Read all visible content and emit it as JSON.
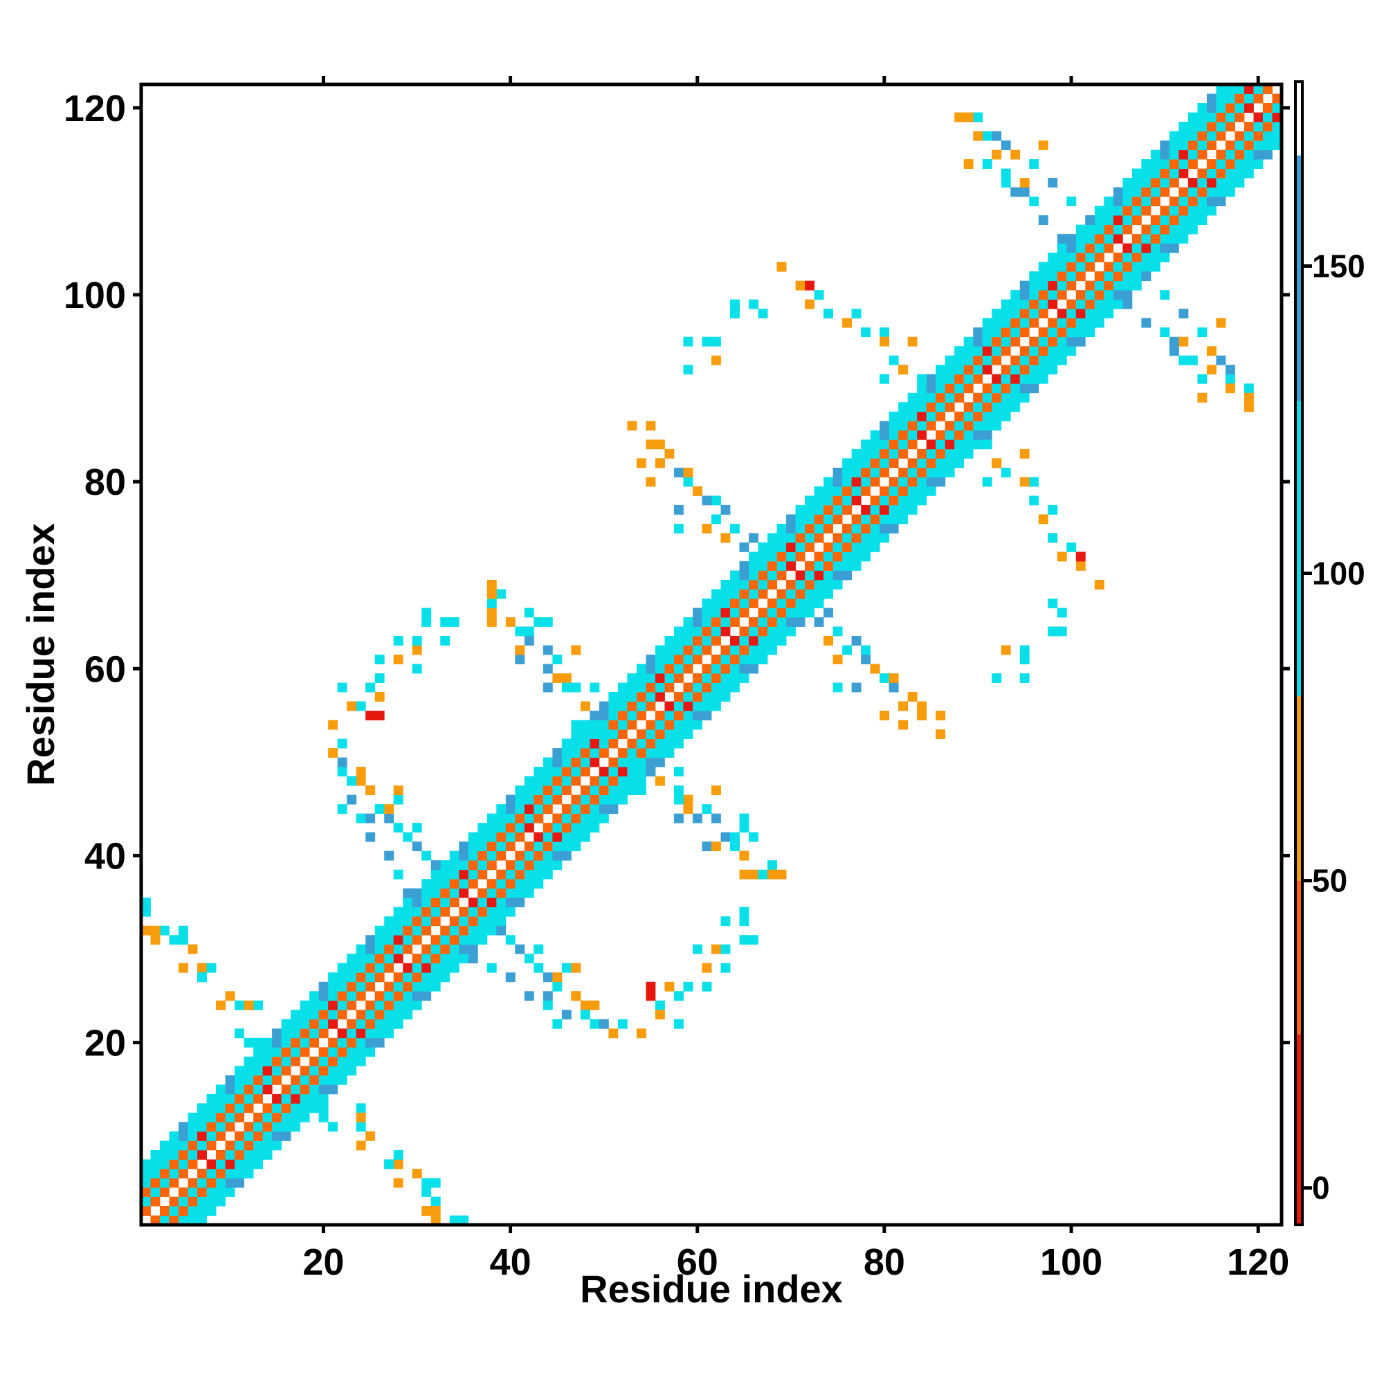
{
  "chart_data": {
    "type": "heatmap",
    "title": "",
    "xlabel": "Residue index",
    "ylabel": "Residue index",
    "xlim": [
      1,
      122
    ],
    "ylim": [
      1,
      122
    ],
    "xticks": [
      20,
      40,
      60,
      80,
      100,
      120
    ],
    "yticks": [
      20,
      40,
      60,
      80,
      100,
      120
    ],
    "grid": false,
    "colorbar": {
      "range": [
        -6,
        180
      ],
      "ticks": [
        0,
        50,
        100,
        150
      ],
      "bands": [
        {
          "from": -6,
          "to": 25,
          "color": "#e8180e"
        },
        {
          "from": 25,
          "to": 50,
          "color": "#fc6405"
        },
        {
          "from": 50,
          "to": 80,
          "color": "#f99c0c"
        },
        {
          "from": 80,
          "to": 128,
          "color": "#08e0e9"
        },
        {
          "from": 128,
          "to": 168,
          "color": "#3b9fd4"
        },
        {
          "from": 168,
          "to": 180,
          "color": "#ffffff"
        }
      ]
    },
    "colors": {
      "red": "#e8180e",
      "orange": "#fc6405",
      "amber": "#f99c0c",
      "cyan": "#08e0e9",
      "steel": "#3b9fd4",
      "slate": "#5a86c4"
    },
    "diagonal_band": {
      "description_pattern": "cells at offsets from diagonal",
      "offsets": [
        {
          "d": 0,
          "color": "white"
        },
        {
          "d": 1,
          "color": "orange"
        },
        {
          "d": 2,
          "color": "cyan"
        },
        {
          "d": 3,
          "color": "orange"
        },
        {
          "d": 4,
          "color": "cyan"
        },
        {
          "d": 5,
          "color": "cyan"
        },
        {
          "d": 6,
          "color": "cyan"
        }
      ]
    },
    "contacts": [
      [
        6,
        30,
        "amber"
      ],
      [
        7,
        28,
        "amber"
      ],
      [
        8,
        28,
        "cyan"
      ],
      [
        7,
        27,
        "steel"
      ],
      [
        10,
        25,
        "amber"
      ],
      [
        11,
        24,
        "cyan"
      ],
      [
        13,
        24,
        "cyan"
      ],
      [
        13,
        20,
        "cyan"
      ],
      [
        1,
        32,
        "amber"
      ],
      [
        1,
        34,
        "cyan"
      ],
      [
        2,
        31,
        "amber"
      ],
      [
        5,
        31,
        "cyan"
      ],
      [
        5,
        32,
        "cyan"
      ],
      [
        20,
        12,
        "cyan"
      ],
      [
        21,
        11,
        "cyan"
      ],
      [
        24,
        12,
        "amber"
      ],
      [
        24,
        9,
        "amber"
      ],
      [
        27,
        7,
        "cyan"
      ],
      [
        28,
        5,
        "amber"
      ],
      [
        31,
        4,
        "cyan"
      ],
      [
        32,
        3,
        "cyan"
      ],
      [
        32,
        2,
        "amber"
      ],
      [
        35,
        1,
        "cyan"
      ],
      [
        21,
        51,
        "amber"
      ],
      [
        22,
        49,
        "cyan"
      ],
      [
        23,
        48,
        "cyan"
      ],
      [
        24,
        48,
        "amber"
      ],
      [
        25,
        47,
        "amber"
      ],
      [
        26,
        45,
        "cyan"
      ],
      [
        27,
        44,
        "steel"
      ],
      [
        28,
        43,
        "cyan"
      ],
      [
        29,
        42,
        "cyan"
      ],
      [
        30,
        41,
        "steel"
      ],
      [
        31,
        40,
        "cyan"
      ],
      [
        32,
        39,
        "steel"
      ],
      [
        21,
        54,
        "amber"
      ],
      [
        24,
        56,
        "cyan"
      ],
      [
        25,
        58,
        "cyan"
      ],
      [
        26,
        57,
        "amber"
      ],
      [
        28,
        63,
        "cyan"
      ],
      [
        30,
        62,
        "amber"
      ],
      [
        31,
        66,
        "cyan"
      ],
      [
        34,
        65,
        "cyan"
      ],
      [
        26,
        55,
        "red"
      ],
      [
        22,
        45,
        "cyan"
      ],
      [
        25,
        44,
        "steel"
      ],
      [
        28,
        46,
        "cyan"
      ],
      [
        38,
        69,
        "amber"
      ],
      [
        39,
        68,
        "cyan"
      ],
      [
        42,
        66,
        "cyan"
      ],
      [
        44,
        65,
        "cyan"
      ],
      [
        42,
        63,
        "steel"
      ],
      [
        44,
        62,
        "steel"
      ],
      [
        45,
        61,
        "cyan"
      ],
      [
        46,
        59,
        "amber"
      ],
      [
        47,
        58,
        "cyan"
      ],
      [
        48,
        56,
        "cyan"
      ],
      [
        49,
        55,
        "steel"
      ],
      [
        50,
        53,
        "cyan"
      ],
      [
        38,
        66,
        "amber"
      ],
      [
        40,
        65,
        "amber"
      ],
      [
        42,
        64,
        "cyan"
      ],
      [
        47,
        62,
        "amber"
      ],
      [
        49,
        58,
        "cyan"
      ],
      [
        36,
        29,
        "steel"
      ],
      [
        38,
        28,
        "cyan"
      ],
      [
        40,
        27,
        "steel"
      ],
      [
        42,
        25,
        "steel"
      ],
      [
        44,
        24,
        "cyan"
      ],
      [
        46,
        23,
        "steel"
      ],
      [
        48,
        23,
        "cyan"
      ],
      [
        50,
        22,
        "steel"
      ],
      [
        52,
        22,
        "cyan"
      ],
      [
        45,
        27,
        "amber"
      ],
      [
        47,
        25,
        "amber"
      ],
      [
        49,
        24,
        "amber"
      ],
      [
        43,
        30,
        "cyan"
      ],
      [
        47,
        28,
        "amber"
      ],
      [
        55,
        25,
        "red"
      ],
      [
        56,
        23,
        "amber"
      ],
      [
        58,
        25,
        "cyan"
      ],
      [
        59,
        26,
        "cyan"
      ],
      [
        61,
        26,
        "cyan"
      ],
      [
        58,
        22,
        "cyan"
      ],
      [
        60,
        30,
        "cyan"
      ],
      [
        61,
        28,
        "amber"
      ],
      [
        63,
        30,
        "cyan"
      ],
      [
        65,
        31,
        "cyan"
      ],
      [
        63,
        33,
        "cyan"
      ],
      [
        65,
        33,
        "cyan"
      ],
      [
        52,
        46,
        "cyan"
      ],
      [
        54,
        47,
        "cyan"
      ],
      [
        56,
        48,
        "amber"
      ],
      [
        58,
        46,
        "cyan"
      ],
      [
        58,
        44,
        "steel"
      ],
      [
        59,
        45,
        "amber"
      ],
      [
        60,
        44,
        "steel"
      ],
      [
        61,
        41,
        "steel"
      ],
      [
        62,
        41,
        "amber"
      ],
      [
        64,
        41,
        "cyan"
      ],
      [
        65,
        38,
        "amber"
      ],
      [
        67,
        38,
        "cyan"
      ],
      [
        68,
        38,
        "amber"
      ],
      [
        65,
        43,
        "cyan"
      ],
      [
        53,
        86,
        "amber"
      ],
      [
        55,
        84,
        "amber"
      ],
      [
        56,
        82,
        "cyan"
      ],
      [
        58,
        81,
        "steel"
      ],
      [
        59,
        80,
        "cyan"
      ],
      [
        60,
        79,
        "steel"
      ],
      [
        62,
        78,
        "cyan"
      ],
      [
        63,
        77,
        "steel"
      ],
      [
        64,
        75,
        "cyan"
      ],
      [
        66,
        74,
        "steel"
      ],
      [
        67,
        73,
        "cyan"
      ],
      [
        54,
        82,
        "amber"
      ],
      [
        58,
        77,
        "steel"
      ],
      [
        61,
        75,
        "amber"
      ],
      [
        59,
        95,
        "cyan"
      ],
      [
        61,
        95,
        "cyan"
      ],
      [
        62,
        93,
        "amber"
      ],
      [
        64,
        99,
        "cyan"
      ],
      [
        66,
        99,
        "cyan"
      ],
      [
        69,
        103,
        "amber"
      ],
      [
        71,
        101,
        "amber"
      ],
      [
        73,
        100,
        "cyan"
      ],
      [
        74,
        98,
        "amber"
      ],
      [
        76,
        97,
        "amber"
      ],
      [
        80,
        96,
        "cyan"
      ],
      [
        82,
        92,
        "amber"
      ],
      [
        80,
        91,
        "cyan"
      ],
      [
        70,
        66,
        "cyan"
      ],
      [
        73,
        65,
        "steel"
      ],
      [
        74,
        63,
        "amber"
      ],
      [
        76,
        62,
        "cyan"
      ],
      [
        78,
        61,
        "steel"
      ],
      [
        79,
        60,
        "amber"
      ],
      [
        81,
        59,
        "amber"
      ],
      [
        83,
        57,
        "amber"
      ],
      [
        84,
        56,
        "amber"
      ],
      [
        86,
        55,
        "amber"
      ],
      [
        75,
        58,
        "cyan"
      ],
      [
        80,
        55,
        "amber"
      ],
      [
        82,
        56,
        "amber"
      ],
      [
        89,
        84,
        "cyan"
      ],
      [
        91,
        84,
        "cyan"
      ],
      [
        92,
        82,
        "amber"
      ],
      [
        93,
        81,
        "cyan"
      ],
      [
        95,
        80,
        "amber"
      ],
      [
        96,
        78,
        "cyan"
      ],
      [
        98,
        77,
        "cyan"
      ],
      [
        99,
        72,
        "amber"
      ],
      [
        101,
        72,
        "red"
      ],
      [
        98,
        74,
        "cyan"
      ],
      [
        95,
        83,
        "amber"
      ],
      [
        98,
        67,
        "cyan"
      ],
      [
        98,
        64,
        "cyan"
      ],
      [
        95,
        62,
        "cyan"
      ],
      [
        92,
        59,
        "cyan"
      ],
      [
        88,
        119,
        "amber"
      ],
      [
        90,
        119,
        "cyan"
      ],
      [
        91,
        117,
        "cyan"
      ],
      [
        93,
        116,
        "steel"
      ],
      [
        94,
        115,
        "amber"
      ],
      [
        96,
        114,
        "cyan"
      ],
      [
        98,
        112,
        "steel"
      ],
      [
        100,
        110,
        "cyan"
      ],
      [
        102,
        108,
        "steel"
      ],
      [
        103,
        107,
        "cyan"
      ],
      [
        89,
        114,
        "amber"
      ],
      [
        93,
        112,
        "cyan"
      ],
      [
        95,
        111,
        "steel"
      ],
      [
        97,
        116,
        "amber"
      ],
      [
        104,
        100,
        "cyan"
      ],
      [
        106,
        99,
        "steel"
      ],
      [
        108,
        97,
        "steel"
      ],
      [
        110,
        96,
        "cyan"
      ],
      [
        111,
        94,
        "steel"
      ],
      [
        113,
        93,
        "cyan"
      ],
      [
        115,
        92,
        "amber"
      ],
      [
        117,
        90,
        "amber"
      ],
      [
        119,
        89,
        "amber"
      ],
      [
        112,
        95,
        "amber"
      ],
      [
        114,
        91,
        "cyan"
      ],
      [
        117,
        92,
        "steel"
      ]
    ]
  }
}
